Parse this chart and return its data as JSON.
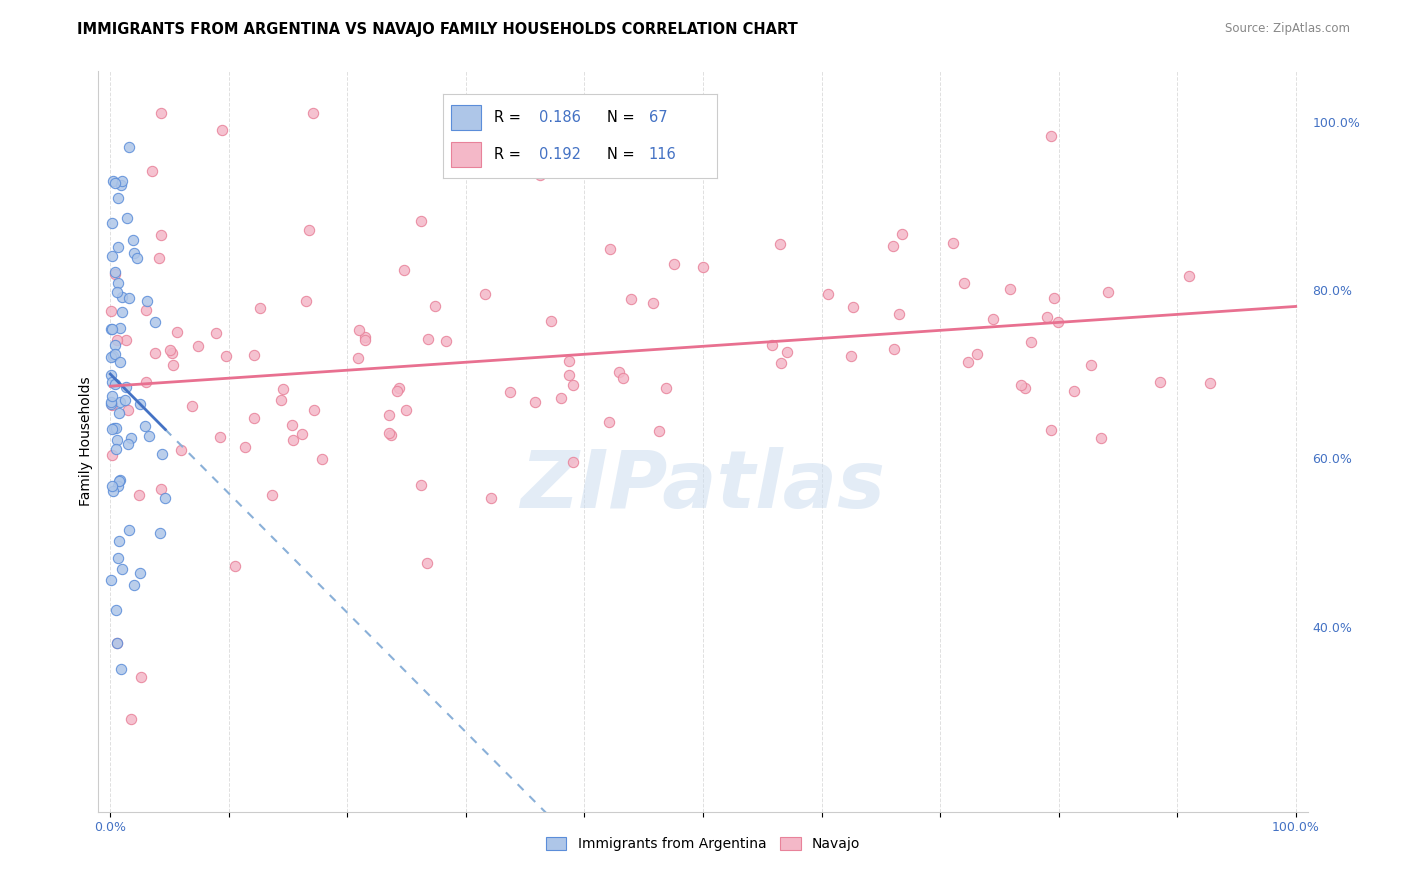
{
  "title": "IMMIGRANTS FROM ARGENTINA VS NAVAJO FAMILY HOUSEHOLDS CORRELATION CHART",
  "source": "Source: ZipAtlas.com",
  "ylabel": "Family Households",
  "watermark": "ZIPatlas",
  "blue_color": "#aec6e8",
  "pink_color": "#f4b8c8",
  "blue_edge_color": "#5b8dd9",
  "pink_edge_color": "#e8829a",
  "blue_line_color": "#4472c4",
  "pink_line_color": "#e87090",
  "dashed_line_color": "#8ab0d8",
  "R_value_color": "#4472c4",
  "N_value_color": "#4472c4",
  "ytick_color": "#4472c4",
  "xtick_color": "#4472c4",
  "background_color": "#ffffff",
  "grid_color": "#e0e0e0",
  "title_fontsize": 10.5,
  "axis_label_fontsize": 9,
  "marker_size": 55,
  "xlim": [
    -0.01,
    1.01
  ],
  "ylim": [
    0.18,
    1.06
  ],
  "yticks": [
    0.4,
    0.6,
    0.8,
    1.0
  ],
  "ytick_labels": [
    "40.0%",
    "60.0%",
    "80.0%",
    "100.0%"
  ],
  "blue_R": "0.186",
  "blue_N": "67",
  "pink_R": "0.192",
  "pink_N": "116"
}
